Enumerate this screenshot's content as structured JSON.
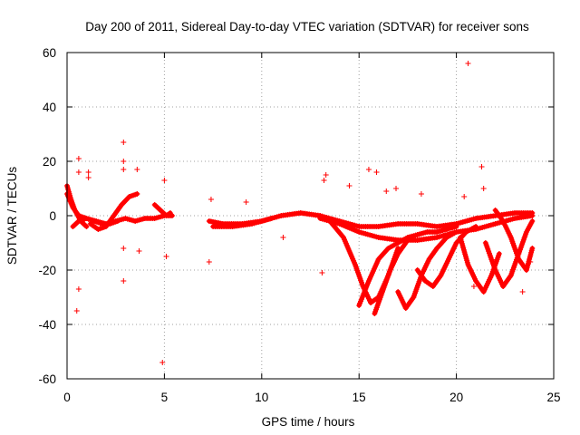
{
  "chart_data": {
    "type": "scatter",
    "title": "Day 200 of 2011, Sidereal Day-to-day VTEC variation (SDTVAR) for receiver sons",
    "xlabel": "GPS time / hours",
    "ylabel": "SDTVAR / TECUs",
    "xlim": [
      0,
      25
    ],
    "ylim": [
      -60,
      60
    ],
    "xticks": [
      0,
      5,
      10,
      15,
      20,
      25
    ],
    "yticks": [
      -60,
      -40,
      -20,
      0,
      20,
      40,
      60
    ],
    "grid": true,
    "marker": "+",
    "color": "#ff0000",
    "series": [
      {
        "name": "SDTVAR",
        "segments": [
          {
            "x": [
              0.0,
              0.3,
              0.6,
              1.0,
              1.5,
              2.0,
              2.5,
              3.0,
              3.5,
              4.0,
              4.5,
              5.0,
              5.4
            ],
            "y": [
              8,
              3,
              0,
              -1,
              -2,
              -3,
              -2,
              -1,
              -2,
              -1,
              -1,
              0,
              0
            ]
          },
          {
            "x": [
              0.0,
              0.2,
              0.4,
              0.7,
              1.0
            ],
            "y": [
              11,
              6,
              2,
              -2,
              -4
            ]
          },
          {
            "x": [
              1.2,
              1.6,
              2.0,
              2.4,
              2.8,
              3.2,
              3.6
            ],
            "y": [
              -3,
              -5,
              -4,
              0,
              4,
              7,
              8
            ]
          },
          {
            "x": [
              0.3,
              0.6,
              1.0,
              1.4,
              1.8,
              2.2,
              2.6
            ],
            "y": [
              -4,
              -2,
              -1,
              -2,
              -3,
              -3,
              -2
            ]
          },
          {
            "x": [
              4.5,
              4.8,
              5.1,
              5.3
            ],
            "y": [
              4,
              2,
              0,
              1
            ]
          },
          {
            "x": [
              7.3,
              8.0,
              9.0,
              10.0,
              11.0,
              12.0,
              13.0,
              14.0,
              15.0,
              16.0,
              17.0,
              18.0,
              19.0,
              20.0,
              21.0,
              22.0,
              23.0,
              23.9
            ],
            "y": [
              -2,
              -3,
              -3,
              -2,
              0,
              1,
              0,
              -2,
              -4,
              -4,
              -3,
              -3,
              -4,
              -3,
              -1,
              0,
              1,
              1
            ]
          },
          {
            "x": [
              7.5,
              8.5,
              9.5,
              10.5
            ],
            "y": [
              -4,
              -4,
              -3,
              -1
            ]
          },
          {
            "x": [
              13.0,
              14.0,
              15.0,
              16.0,
              17.0,
              18.0,
              19.0,
              20.0,
              21.0,
              22.0,
              23.0,
              23.9
            ],
            "y": [
              -1,
              -3,
              -6,
              -8,
              -9,
              -9,
              -8,
              -6,
              -5,
              -3,
              -1,
              0
            ]
          },
          {
            "x": [
              13.5,
              14.2,
              14.8,
              15.2,
              15.6,
              16.0,
              16.5,
              17.0
            ],
            "y": [
              -2,
              -8,
              -18,
              -26,
              -32,
              -30,
              -22,
              -12
            ]
          },
          {
            "x": [
              15.0,
              15.5,
              16.0,
              16.5,
              17.0,
              17.5,
              18.0,
              18.5,
              19.0,
              19.5,
              20.0
            ],
            "y": [
              -33,
              -24,
              -16,
              -12,
              -10,
              -8,
              -7,
              -6,
              -6,
              -5,
              -4
            ]
          },
          {
            "x": [
              15.8,
              16.2,
              16.6,
              17.0,
              17.4
            ],
            "y": [
              -36,
              -28,
              -20,
              -14,
              -10
            ]
          },
          {
            "x": [
              17.0,
              17.4,
              17.8,
              18.2,
              18.6,
              19.0,
              19.5,
              20.0
            ],
            "y": [
              -28,
              -34,
              -30,
              -22,
              -16,
              -12,
              -8,
              -6
            ]
          },
          {
            "x": [
              18.0,
              18.4,
              18.8,
              19.2,
              19.6,
              20.0,
              20.5,
              21.0
            ],
            "y": [
              -20,
              -24,
              -26,
              -22,
              -16,
              -10,
              -6,
              -4
            ]
          },
          {
            "x": [
              20.2,
              20.6,
              21.0,
              21.4,
              21.8,
              22.2
            ],
            "y": [
              -8,
              -18,
              -24,
              -28,
              -22,
              -14
            ]
          },
          {
            "x": [
              21.5,
              22.0,
              22.4,
              22.8,
              23.2,
              23.6,
              23.9
            ],
            "y": [
              -10,
              -20,
              -26,
              -22,
              -14,
              -6,
              -2
            ]
          },
          {
            "x": [
              22.0,
              22.4,
              22.8,
              23.2,
              23.6,
              23.9
            ],
            "y": [
              2,
              -2,
              -8,
              -16,
              -20,
              -12
            ]
          }
        ],
        "outliers": {
          "x": [
            0.5,
            0.6,
            0.6,
            0.6,
            1.1,
            1.1,
            2.9,
            2.9,
            2.9,
            2.9,
            2.9,
            3.6,
            3.6,
            3.7,
            4.9,
            5.0,
            5.1,
            7.3,
            7.4,
            9.2,
            11.1,
            13.1,
            13.2,
            13.3,
            14.5,
            15.5,
            15.9,
            16.4,
            16.9,
            18.2,
            20.4,
            20.6,
            20.9,
            21.3,
            21.4,
            23.4,
            23.8
          ],
          "y": [
            -35,
            -27,
            21,
            16,
            14,
            16,
            27,
            20,
            17,
            -12,
            -24,
            17,
            8,
            -13,
            -54,
            13,
            -15,
            -17,
            6,
            5,
            -8,
            -21,
            13,
            15,
            11,
            17,
            16,
            9,
            10,
            8,
            7,
            56,
            -26,
            18,
            10,
            -28,
            -17
          ]
        }
      }
    ]
  }
}
